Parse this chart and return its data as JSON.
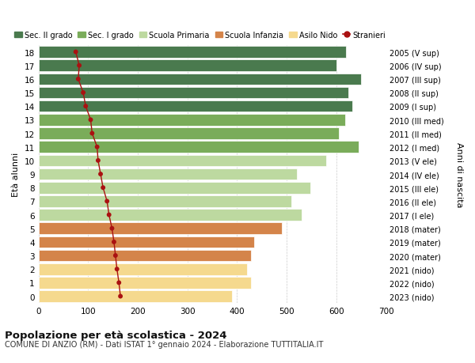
{
  "ages": [
    18,
    17,
    16,
    15,
    14,
    13,
    12,
    11,
    10,
    9,
    8,
    7,
    6,
    5,
    4,
    3,
    2,
    1,
    0
  ],
  "bar_values": [
    620,
    600,
    650,
    625,
    632,
    618,
    605,
    645,
    580,
    520,
    548,
    510,
    530,
    490,
    435,
    428,
    420,
    428,
    390
  ],
  "stranieri": [
    75,
    82,
    80,
    90,
    95,
    105,
    108,
    118,
    120,
    125,
    130,
    138,
    142,
    148,
    152,
    155,
    158,
    162,
    165
  ],
  "right_labels": [
    "2005 (V sup)",
    "2006 (IV sup)",
    "2007 (III sup)",
    "2008 (II sup)",
    "2009 (I sup)",
    "2010 (III med)",
    "2011 (II med)",
    "2012 (I med)",
    "2013 (V ele)",
    "2014 (IV ele)",
    "2015 (III ele)",
    "2016 (II ele)",
    "2017 (I ele)",
    "2018 (mater)",
    "2019 (mater)",
    "2020 (mater)",
    "2021 (nido)",
    "2022 (nido)",
    "2023 (nido)"
  ],
  "bar_colors": [
    "#4a7a4e",
    "#4a7a4e",
    "#4a7a4e",
    "#4a7a4e",
    "#4a7a4e",
    "#7aac5a",
    "#7aac5a",
    "#7aac5a",
    "#bdd9a0",
    "#bdd9a0",
    "#bdd9a0",
    "#bdd9a0",
    "#bdd9a0",
    "#d4844a",
    "#d4844a",
    "#d4844a",
    "#f5d98e",
    "#f5d98e",
    "#f5d98e"
  ],
  "legend_labels": [
    "Sec. II grado",
    "Sec. I grado",
    "Scuola Primaria",
    "Scuola Infanzia",
    "Asilo Nido",
    "Stranieri"
  ],
  "legend_colors": [
    "#4a7a4e",
    "#7aac5a",
    "#bdd9a0",
    "#d4844a",
    "#f5d98e",
    "#aa1111"
  ],
  "ylabel_left": "Età alunni",
  "ylabel_right": "Anni di nascita",
  "title": "Popolazione per età scolastica - 2024",
  "subtitle": "COMUNE DI ANZIO (RM) - Dati ISTAT 1° gennaio 2024 - Elaborazione TUTTITALIA.IT",
  "xlim": [
    0,
    700
  ],
  "xticks": [
    0,
    100,
    200,
    300,
    400,
    500,
    600,
    700
  ],
  "background_color": "#ffffff",
  "grid_color": "#cccccc",
  "stranieri_color": "#aa1111"
}
